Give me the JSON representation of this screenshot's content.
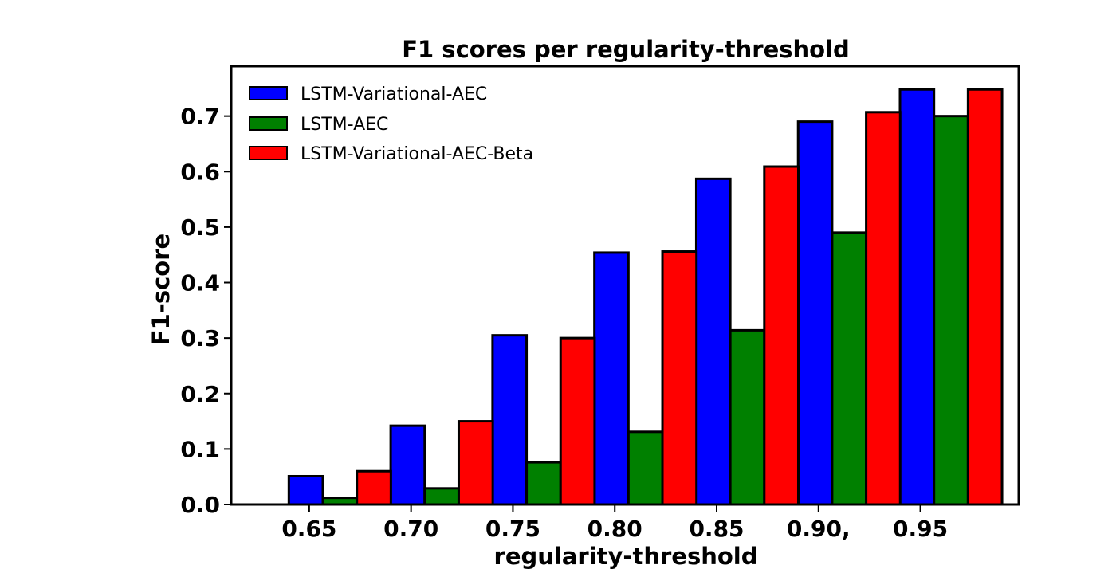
{
  "chart_data": {
    "type": "bar",
    "title": "F1 scores per regularity-threshold",
    "xlabel": "regularity-threshold",
    "ylabel": "F1-score",
    "categories": [
      0.64,
      0.69,
      0.74,
      0.79,
      0.84,
      0.89,
      0.94
    ],
    "x_ticks": [
      0.65,
      0.7,
      0.75,
      0.8,
      0.85,
      0.9,
      0.95
    ],
    "x_tick_labels": [
      "0.65",
      "0.70",
      "0.75",
      "0.80",
      "0.85",
      "0.90,",
      "0.95"
    ],
    "xlim": [
      0.6117,
      0.9983
    ],
    "ylim": [
      0,
      0.79
    ],
    "y_ticks": [
      0.0,
      0.1,
      0.2,
      0.3,
      0.4,
      0.5,
      0.6,
      0.7
    ],
    "y_tick_labels": [
      "0.0",
      "0.1",
      "0.2",
      "0.3",
      "0.4",
      "0.5",
      "0.6",
      "0.7"
    ],
    "bar_width": 0.0167,
    "series": [
      {
        "name": "LSTM-Variational-AEC",
        "color": "#0000ff",
        "offset": 0,
        "values": [
          0.051,
          0.142,
          0.305,
          0.454,
          0.587,
          0.69,
          0.748
        ]
      },
      {
        "name": "LSTM-AEC",
        "color": "#008000",
        "offset": 1,
        "values": [
          0.012,
          0.029,
          0.076,
          0.131,
          0.314,
          0.49,
          0.7
        ]
      },
      {
        "name": "LSTM-Variational-AEC-Beta",
        "color": "#ff0000",
        "offset": 2,
        "values": [
          0.06,
          0.15,
          0.3,
          0.456,
          0.609,
          0.707,
          0.748
        ]
      }
    ],
    "grid": false,
    "legend_position": "upper left"
  }
}
